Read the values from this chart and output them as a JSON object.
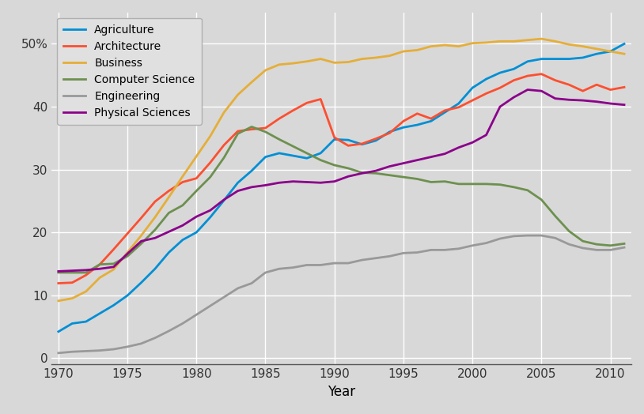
{
  "title": "",
  "xlabel": "Year",
  "ylabel": "",
  "background_color": "#d8d8d8",
  "plot_bg_color": "#d8d8d8",
  "grid_color": "#ffffff",
  "ytick_labels": [
    "0",
    "10",
    "20",
    "30",
    "40",
    "50%"
  ],
  "ytick_values": [
    0,
    10,
    20,
    30,
    40,
    50
  ],
  "xlim": [
    1969.5,
    2011.5
  ],
  "ylim": [
    -1,
    55
  ],
  "series": {
    "Agriculture": {
      "color": "#008fd5",
      "data": {
        "1970": 4.2,
        "1971": 5.5,
        "1972": 5.8,
        "1973": 7.1,
        "1974": 8.4,
        "1975": 9.95,
        "1976": 12.0,
        "1977": 14.2,
        "1978": 16.8,
        "1979": 18.8,
        "1980": 20.0,
        "1981": 22.4,
        "1982": 25.1,
        "1983": 27.9,
        "1984": 29.8,
        "1985": 32.0,
        "1986": 32.6,
        "1987": 32.2,
        "1988": 31.8,
        "1989": 32.6,
        "1990": 34.8,
        "1991": 34.7,
        "1992": 34.0,
        "1993": 34.6,
        "1994": 36.0,
        "1995": 36.7,
        "1996": 37.1,
        "1997": 37.7,
        "1998": 39.1,
        "1999": 40.5,
        "2000": 43.0,
        "2001": 44.4,
        "2002": 45.4,
        "2003": 46.0,
        "2004": 47.2,
        "2005": 47.6,
        "2006": 47.6,
        "2007": 47.6,
        "2008": 47.8,
        "2009": 48.4,
        "2010": 48.8,
        "2011": 50.0
      }
    },
    "Architecture": {
      "color": "#fc4f30",
      "data": {
        "1970": 11.9,
        "1971": 12.0,
        "1972": 13.2,
        "1973": 14.9,
        "1974": 17.3,
        "1975": 19.8,
        "1976": 22.3,
        "1977": 24.9,
        "1978": 26.6,
        "1979": 28.0,
        "1980": 28.6,
        "1981": 31.1,
        "1982": 33.9,
        "1983": 36.1,
        "1984": 36.4,
        "1985": 36.6,
        "1986": 38.1,
        "1987": 39.4,
        "1988": 40.6,
        "1989": 41.2,
        "1990": 35.1,
        "1991": 33.8,
        "1992": 34.1,
        "1993": 34.9,
        "1994": 35.8,
        "1995": 37.7,
        "1996": 38.9,
        "1997": 38.1,
        "1998": 39.4,
        "1999": 39.9,
        "2000": 41.0,
        "2001": 42.1,
        "2002": 43.0,
        "2003": 44.2,
        "2004": 44.9,
        "2005": 45.2,
        "2006": 44.2,
        "2007": 43.5,
        "2008": 42.5,
        "2009": 43.5,
        "2010": 42.7,
        "2011": 43.1
      }
    },
    "Business": {
      "color": "#e5ae38",
      "data": {
        "1970": 9.1,
        "1971": 9.5,
        "1972": 10.6,
        "1973": 12.8,
        "1974": 14.1,
        "1975": 16.8,
        "1976": 19.5,
        "1977": 22.4,
        "1978": 25.6,
        "1979": 28.9,
        "1980": 32.1,
        "1981": 35.3,
        "1982": 39.1,
        "1983": 41.9,
        "1984": 43.9,
        "1985": 45.8,
        "1986": 46.7,
        "1987": 46.9,
        "1988": 47.2,
        "1989": 47.6,
        "1990": 47.0,
        "1991": 47.1,
        "1992": 47.6,
        "1993": 47.8,
        "1994": 48.1,
        "1995": 48.8,
        "1996": 49.0,
        "1997": 49.6,
        "1998": 49.8,
        "1999": 49.6,
        "2000": 50.1,
        "2001": 50.2,
        "2002": 50.4,
        "2003": 50.4,
        "2004": 50.6,
        "2005": 50.8,
        "2006": 50.4,
        "2007": 49.9,
        "2008": 49.6,
        "2009": 49.2,
        "2010": 48.8,
        "2011": 48.4
      }
    },
    "Computer Science": {
      "color": "#6d904f",
      "data": {
        "1970": 13.6,
        "1971": 13.6,
        "1972": 13.6,
        "1973": 14.9,
        "1974": 15.0,
        "1975": 16.2,
        "1976": 18.2,
        "1977": 20.4,
        "1978": 23.1,
        "1979": 24.3,
        "1980": 26.6,
        "1981": 28.8,
        "1982": 31.9,
        "1983": 35.7,
        "1984": 36.8,
        "1985": 36.0,
        "1986": 34.8,
        "1987": 33.7,
        "1988": 32.6,
        "1989": 31.5,
        "1990": 30.7,
        "1991": 30.2,
        "1992": 29.5,
        "1993": 29.4,
        "1994": 29.1,
        "1995": 28.8,
        "1996": 28.5,
        "1997": 28.0,
        "1998": 28.1,
        "1999": 27.7,
        "2000": 27.7,
        "2001": 27.7,
        "2002": 27.6,
        "2003": 27.2,
        "2004": 26.7,
        "2005": 25.2,
        "2006": 22.6,
        "2007": 20.2,
        "2008": 18.6,
        "2009": 18.1,
        "2010": 17.9,
        "2011": 18.2
      }
    },
    "Engineering": {
      "color": "#999999",
      "data": {
        "1970": 0.8,
        "1971": 1.0,
        "1972": 1.1,
        "1973": 1.2,
        "1974": 1.4,
        "1975": 1.8,
        "1976": 2.3,
        "1977": 3.2,
        "1978": 4.3,
        "1979": 5.5,
        "1980": 6.9,
        "1981": 8.3,
        "1982": 9.7,
        "1983": 11.1,
        "1984": 11.9,
        "1985": 13.6,
        "1986": 14.2,
        "1987": 14.4,
        "1988": 14.8,
        "1989": 14.8,
        "1990": 15.1,
        "1991": 15.1,
        "1992": 15.6,
        "1993": 15.9,
        "1994": 16.2,
        "1995": 16.7,
        "1996": 16.8,
        "1997": 17.2,
        "1998": 17.2,
        "1999": 17.4,
        "2000": 17.9,
        "2001": 18.3,
        "2002": 19.0,
        "2003": 19.4,
        "2004": 19.5,
        "2005": 19.5,
        "2006": 19.1,
        "2007": 18.1,
        "2008": 17.5,
        "2009": 17.2,
        "2010": 17.2,
        "2011": 17.6
      }
    },
    "Physical Sciences": {
      "color": "#8b008b",
      "data": {
        "1970": 13.8,
        "1971": 13.9,
        "1972": 14.0,
        "1973": 14.2,
        "1974": 14.5,
        "1975": 16.6,
        "1976": 18.6,
        "1977": 19.1,
        "1978": 20.1,
        "1979": 21.1,
        "1980": 22.5,
        "1981": 23.5,
        "1982": 25.2,
        "1983": 26.6,
        "1984": 27.2,
        "1985": 27.5,
        "1986": 27.9,
        "1987": 28.1,
        "1988": 28.0,
        "1989": 27.9,
        "1990": 28.1,
        "1991": 28.9,
        "1992": 29.4,
        "1993": 29.8,
        "1994": 30.5,
        "1995": 31.0,
        "1996": 31.5,
        "1997": 32.0,
        "1998": 32.5,
        "1999": 33.5,
        "2000": 34.3,
        "2001": 35.5,
        "2002": 40.0,
        "2003": 41.5,
        "2004": 42.7,
        "2005": 42.5,
        "2006": 41.3,
        "2007": 41.1,
        "2008": 41.0,
        "2009": 40.8,
        "2010": 40.5,
        "2011": 40.3
      }
    }
  }
}
